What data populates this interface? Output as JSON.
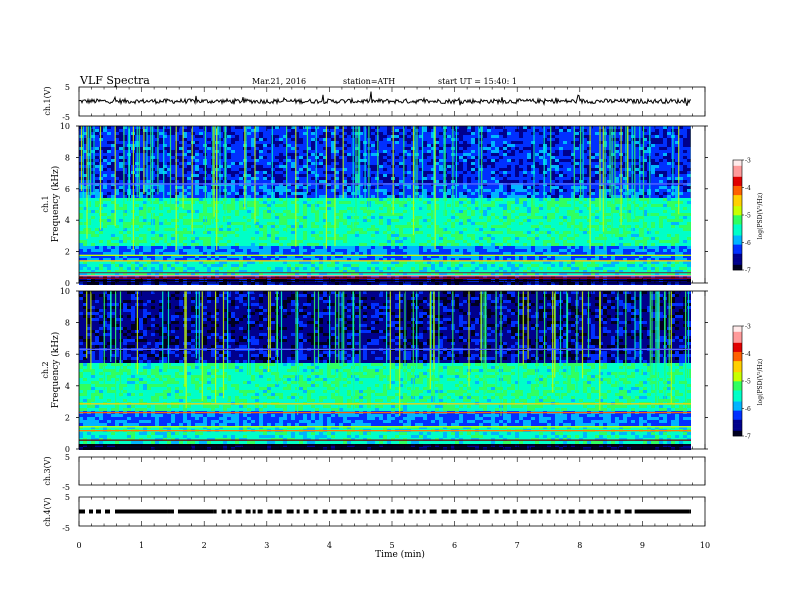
{
  "header": {
    "title": "VLF  Spectra",
    "date": "Mar.21, 2016",
    "station": "station=ATH",
    "start": "start  UT  =    15:40: 1"
  },
  "chart_data": {
    "type": "heatmap",
    "xlabel": "Time  (min)",
    "xlim": [
      0,
      10
    ],
    "x_ticks": [
      "0",
      "1",
      "2",
      "3",
      "4",
      "5",
      "6",
      "7",
      "8",
      "9",
      "10"
    ],
    "panels": [
      {
        "name": "ch.1",
        "kind": "waveform",
        "ylabel": "ch.1(V)",
        "ylim": [
          -5,
          5
        ],
        "y_ticks": [
          "5",
          "-5"
        ],
        "trace_level": 0.1,
        "line_color": "#000000"
      },
      {
        "name": "ch.1",
        "kind": "spectrogram",
        "ylabel_top": "ch.1",
        "ylabel": "Frequency  (kHz)",
        "ylim": [
          0,
          10
        ],
        "y_ticks": [
          "0",
          "2",
          "4",
          "6",
          "8",
          "10"
        ],
        "colorbar": {
          "label": "log(PSD(V²/Hz)",
          "range": [
            -7,
            -3
          ],
          "ticks": [
            "-3",
            "-4",
            "-5",
            "-6",
            "-7"
          ]
        }
      },
      {
        "name": "ch.2",
        "kind": "spectrogram",
        "ylabel_top": "ch.2",
        "ylabel": "Frequency  (kHz)",
        "ylim": [
          0,
          10
        ],
        "y_ticks": [
          "0",
          "2",
          "4",
          "6",
          "8",
          "10"
        ],
        "colorbar": {
          "label": "log(PSD(V²/Hz)",
          "range": [
            -7,
            -3
          ],
          "ticks": [
            "-3",
            "-4",
            "-5",
            "-6",
            "-7"
          ]
        }
      },
      {
        "name": "ch.3",
        "kind": "waveform",
        "ylabel": "ch.3(V)",
        "ylim": [
          -5,
          5
        ],
        "y_ticks": [
          "5",
          "-5"
        ],
        "trace_level": 0
      },
      {
        "name": "ch.4",
        "kind": "waveform",
        "ylabel": "ch.4(V)",
        "ylim": [
          -5,
          5
        ],
        "y_ticks": [
          "5",
          "-5"
        ],
        "trace_level": 0
      }
    ],
    "colormap": [
      "#000020",
      "#00008c",
      "#0030ff",
      "#00b4ff",
      "#00ffc8",
      "#30ff60",
      "#c8ff00",
      "#ffd000",
      "#ff6000",
      "#e00000",
      "#ff9a9a",
      "#ffeaea"
    ]
  }
}
